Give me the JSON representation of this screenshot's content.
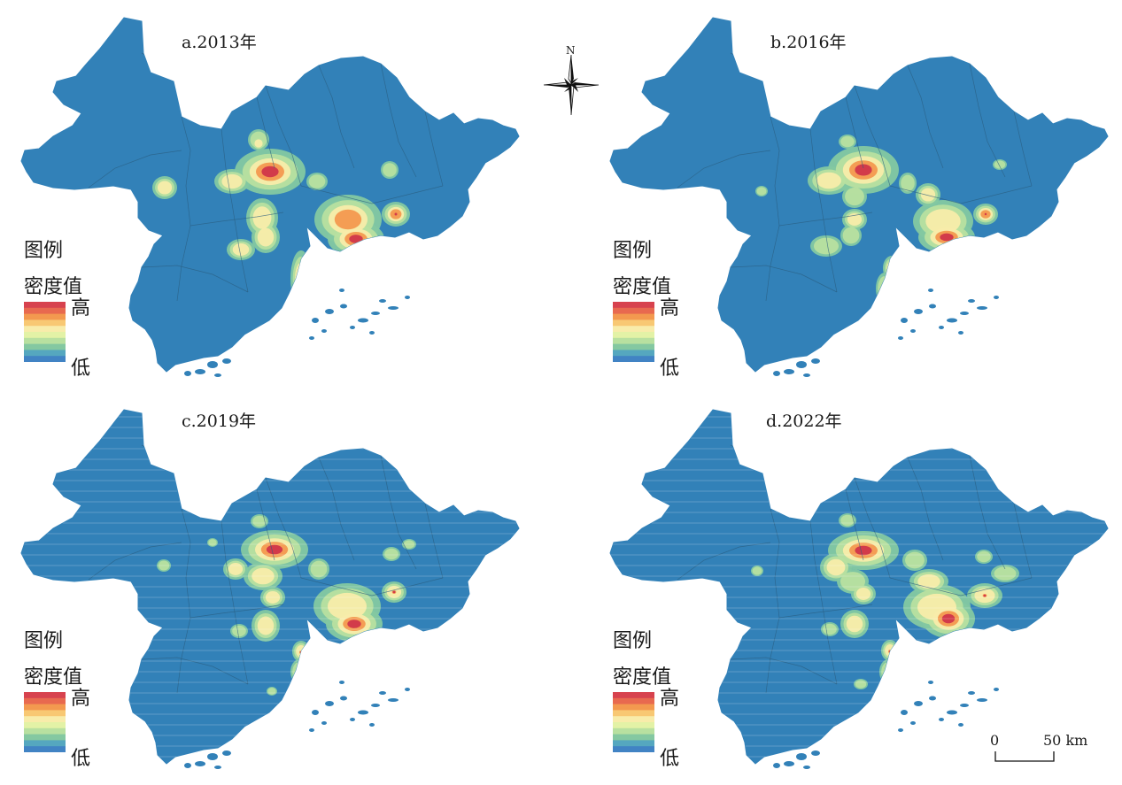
{
  "panels": [
    {
      "title": "a.2013年"
    },
    {
      "title": "b.2016年"
    },
    {
      "title": "c.2019年"
    },
    {
      "title": "d.2022年"
    }
  ],
  "legend": {
    "title_line1": "图例",
    "title_line2": "密度值",
    "high_label": "高",
    "low_label": "低",
    "ramp_colors": [
      "#d7424e",
      "#e8694f",
      "#f3994f",
      "#f8c873",
      "#f8ecaa",
      "#e3f2a6",
      "#b8e0a0",
      "#84c8a1",
      "#55a7bf",
      "#4183c4"
    ]
  },
  "north_arrow": {
    "label": "N"
  },
  "scale_bar": {
    "zero_label": "0",
    "distance_label": "50 km"
  },
  "colors": {
    "base": "#3281b8",
    "low_green": "#84c8a1",
    "light_green": "#b8e0a0",
    "yellow": "#f8ecaa",
    "orange": "#f3994f",
    "red": "#d23b4a",
    "border": "#2a5d7f"
  }
}
